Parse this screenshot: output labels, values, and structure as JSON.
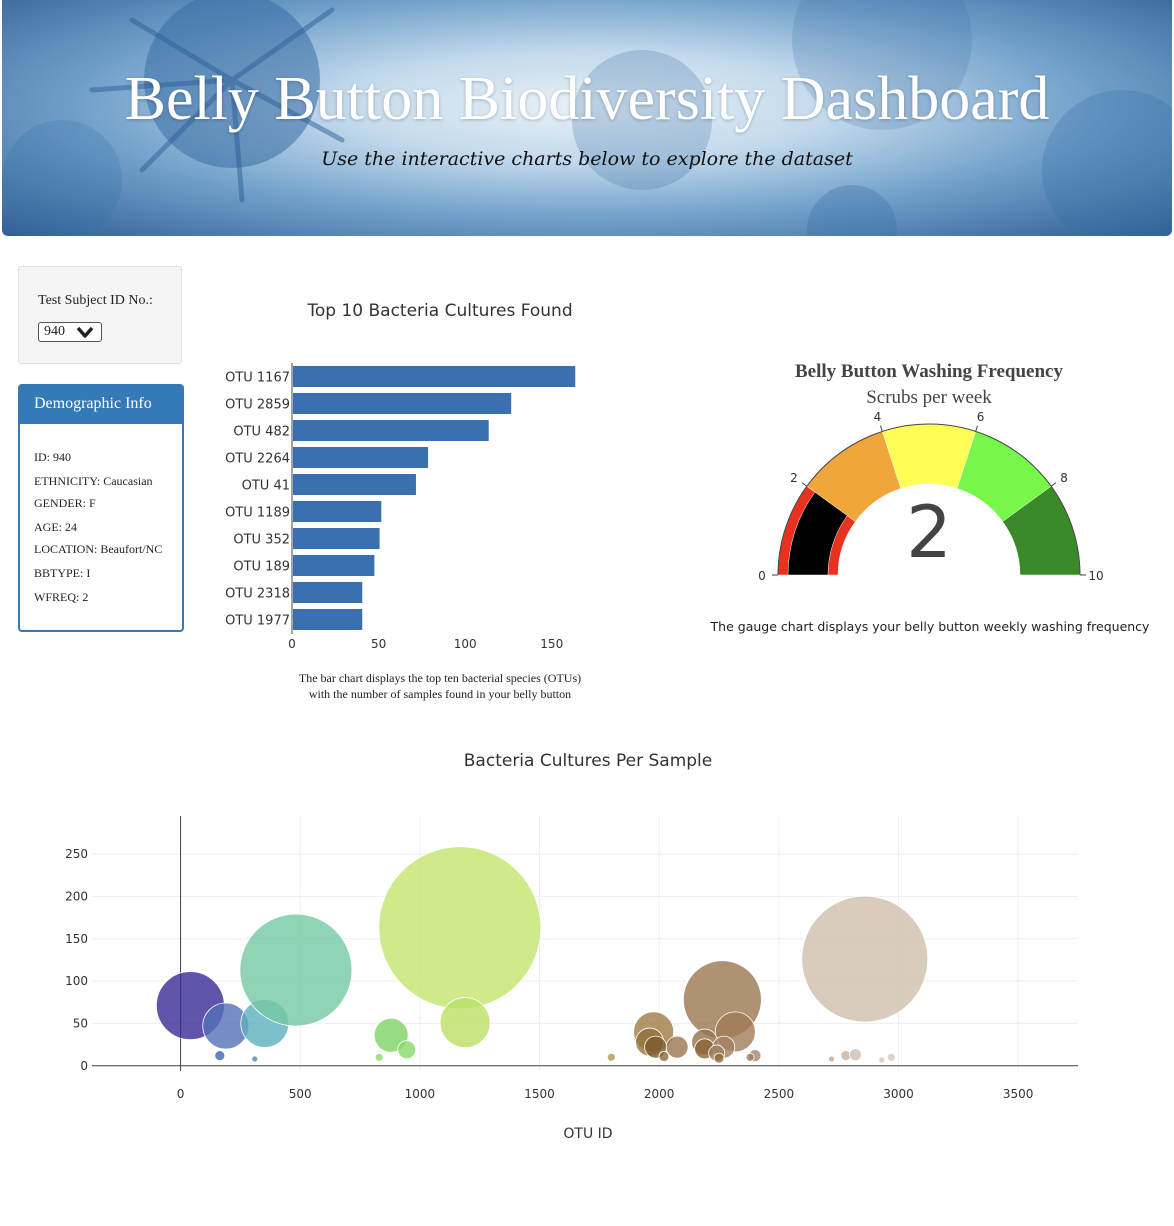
{
  "header": {
    "title": "Belly Button Biodiversity Dashboard",
    "subtitle": "Use the interactive charts below to explore the dataset"
  },
  "selector": {
    "label": "Test Subject ID No.:",
    "selected": "940"
  },
  "demographics": {
    "title": "Demographic Info",
    "rows": [
      "ID: 940",
      "ETHNICITY: Caucasian",
      "GENDER: F",
      "AGE: 24",
      "LOCATION: Beaufort/NC",
      "BBTYPE: I",
      "WFREQ: 2"
    ]
  },
  "captions": {
    "bar_line1": "The bar chart displays the top ten bacterial species (OTUs)",
    "bar_line2": "with the number of samples found in your belly button",
    "gauge": "The gauge chart displays your belly button weekly washing frequency"
  },
  "colors": {
    "bar": "#3a6fb0",
    "panel": "#337ab7"
  },
  "chart_data": [
    {
      "type": "bar",
      "orientation": "horizontal",
      "title": "Top 10 Bacteria Cultures Found",
      "categories": [
        "OTU 1167",
        "OTU 2859",
        "OTU 482",
        "OTU 2264",
        "OTU 41",
        "OTU 1189",
        "OTU 352",
        "OTU 189",
        "OTU 2318",
        "OTU 1977"
      ],
      "values": [
        163,
        126,
        113,
        78,
        71,
        51,
        50,
        47,
        40,
        40
      ],
      "xticks": [
        "0",
        "50",
        "100",
        "150"
      ],
      "xlim": [
        0,
        165
      ]
    },
    {
      "type": "gauge",
      "title": "Belly Button Washing Frequency",
      "subtitle": "Scrubs per week",
      "value": 2,
      "range": [
        0,
        10
      ],
      "ticks": [
        "0",
        "2",
        "4",
        "6",
        "8",
        "10"
      ],
      "bands": [
        {
          "from": 0,
          "to": 2,
          "color": "#e8321f"
        },
        {
          "from": 2,
          "to": 4,
          "color": "#f0a63a"
        },
        {
          "from": 4,
          "to": 6,
          "color": "#ffff55"
        },
        {
          "from": 6,
          "to": 8,
          "color": "#77f74a"
        },
        {
          "from": 8,
          "to": 10,
          "color": "#3a8a2a"
        }
      ]
    },
    {
      "type": "scatter",
      "title": "Bacteria Cultures Per Sample",
      "xlabel": "OTU ID",
      "xlim": [
        -370,
        3750
      ],
      "ylim": [
        -5,
        295
      ],
      "xticks": [
        0,
        500,
        1000,
        1500,
        2000,
        2500,
        3000,
        3500
      ],
      "yticks": [
        0,
        50,
        100,
        150,
        200,
        250
      ],
      "points": [
        {
          "x": 41,
          "y": 71,
          "r": 34,
          "c": "#3a2a96"
        },
        {
          "x": 189,
          "y": 47,
          "r": 23,
          "c": "#5470b8"
        },
        {
          "x": 164,
          "y": 12,
          "r": 5,
          "c": "#3f64ad"
        },
        {
          "x": 352,
          "y": 50,
          "r": 24,
          "c": "#5cafbe"
        },
        {
          "x": 310,
          "y": 8,
          "r": 3,
          "c": "#4a88b0"
        },
        {
          "x": 482,
          "y": 113,
          "r": 56,
          "c": "#74c8a2"
        },
        {
          "x": 880,
          "y": 36,
          "r": 17,
          "c": "#7dd366"
        },
        {
          "x": 945,
          "y": 19,
          "r": 9,
          "c": "#88d868"
        },
        {
          "x": 830,
          "y": 10,
          "r": 4,
          "c": "#8cd86b"
        },
        {
          "x": 1167,
          "y": 163,
          "r": 81,
          "c": "#c2e56e"
        },
        {
          "x": 1189,
          "y": 51,
          "r": 25,
          "c": "#bce067"
        },
        {
          "x": 1800,
          "y": 10,
          "r": 4,
          "c": "#b39a4e"
        },
        {
          "x": 1977,
          "y": 40,
          "r": 20,
          "c": "#a07a45"
        },
        {
          "x": 1960,
          "y": 28,
          "r": 14,
          "c": "#94703c"
        },
        {
          "x": 1985,
          "y": 22,
          "r": 11,
          "c": "#7c5a2c"
        },
        {
          "x": 2075,
          "y": 22,
          "r": 11,
          "c": "#9a7450"
        },
        {
          "x": 2020,
          "y": 11,
          "r": 5,
          "c": "#8a6a3a"
        },
        {
          "x": 2264,
          "y": 78,
          "r": 39,
          "c": "#9b7550"
        },
        {
          "x": 2318,
          "y": 40,
          "r": 20,
          "c": "#a07a58"
        },
        {
          "x": 2190,
          "y": 28,
          "r": 13,
          "c": "#96704a"
        },
        {
          "x": 2190,
          "y": 20,
          "r": 10,
          "c": "#8a6438"
        },
        {
          "x": 2270,
          "y": 22,
          "r": 11,
          "c": "#a58060"
        },
        {
          "x": 2240,
          "y": 15,
          "r": 8,
          "c": "#a07a58"
        },
        {
          "x": 2250,
          "y": 9,
          "r": 5,
          "c": "#8f6a46"
        },
        {
          "x": 2400,
          "y": 12,
          "r": 6,
          "c": "#a8856a"
        },
        {
          "x": 2380,
          "y": 10,
          "r": 4,
          "c": "#9e7b5e"
        },
        {
          "x": 2859,
          "y": 126,
          "r": 63,
          "c": "#cfbfad"
        },
        {
          "x": 2720,
          "y": 8,
          "r": 3,
          "c": "#c2a892"
        },
        {
          "x": 2780,
          "y": 12,
          "r": 5,
          "c": "#c7b19b"
        },
        {
          "x": 2820,
          "y": 13,
          "r": 6,
          "c": "#cfbdad"
        },
        {
          "x": 2930,
          "y": 7,
          "r": 3,
          "c": "#d2c4b6"
        },
        {
          "x": 2970,
          "y": 10,
          "r": 4,
          "c": "#d6c9bb"
        }
      ]
    }
  ]
}
